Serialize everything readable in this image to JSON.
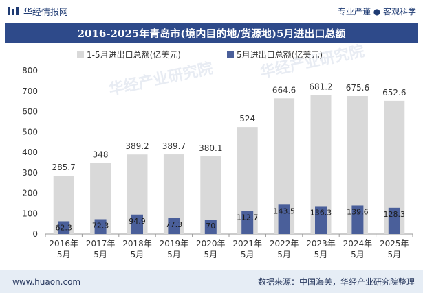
{
  "header": {
    "brand": "华经情报网",
    "tagline": "专业严谨 ● 客观科学"
  },
  "title": "2016-2025年青岛市(境内目的地/货源地)5月进出口总额",
  "footer": {
    "url": "www.huaon.com",
    "source": "数据来源：中国海关，华经产业研究院整理"
  },
  "watermark": "华经产业研究院",
  "colors": {
    "banner": "#2e4a8a",
    "series_cumulative": "#d9d9d9",
    "series_may": "#4a5f9a"
  },
  "chart_data": {
    "type": "bar",
    "categories": [
      "2016年\n5月",
      "2017年\n5月",
      "2018年\n5月",
      "2019年\n5月",
      "2020年\n5月",
      "2021年\n5月",
      "2022年\n5月",
      "2023年\n5月",
      "2024年\n5月",
      "2025年\n5月"
    ],
    "series": [
      {
        "name": "1-5月进出口总额(亿美元)",
        "values": [
          285.7,
          348,
          389.2,
          389.7,
          380.1,
          524,
          664.6,
          681.2,
          675.6,
          652.6
        ]
      },
      {
        "name": "5月进出口总额(亿美元)",
        "values": [
          62.3,
          72.3,
          94.9,
          77.3,
          70,
          112.7,
          143.5,
          136.3,
          139.6,
          128.3
        ]
      }
    ],
    "ylim": [
      0,
      800
    ],
    "yticks": [
      0,
      100,
      200,
      300,
      400,
      500,
      600,
      700,
      800
    ],
    "legend_position": "top",
    "grid": false
  }
}
